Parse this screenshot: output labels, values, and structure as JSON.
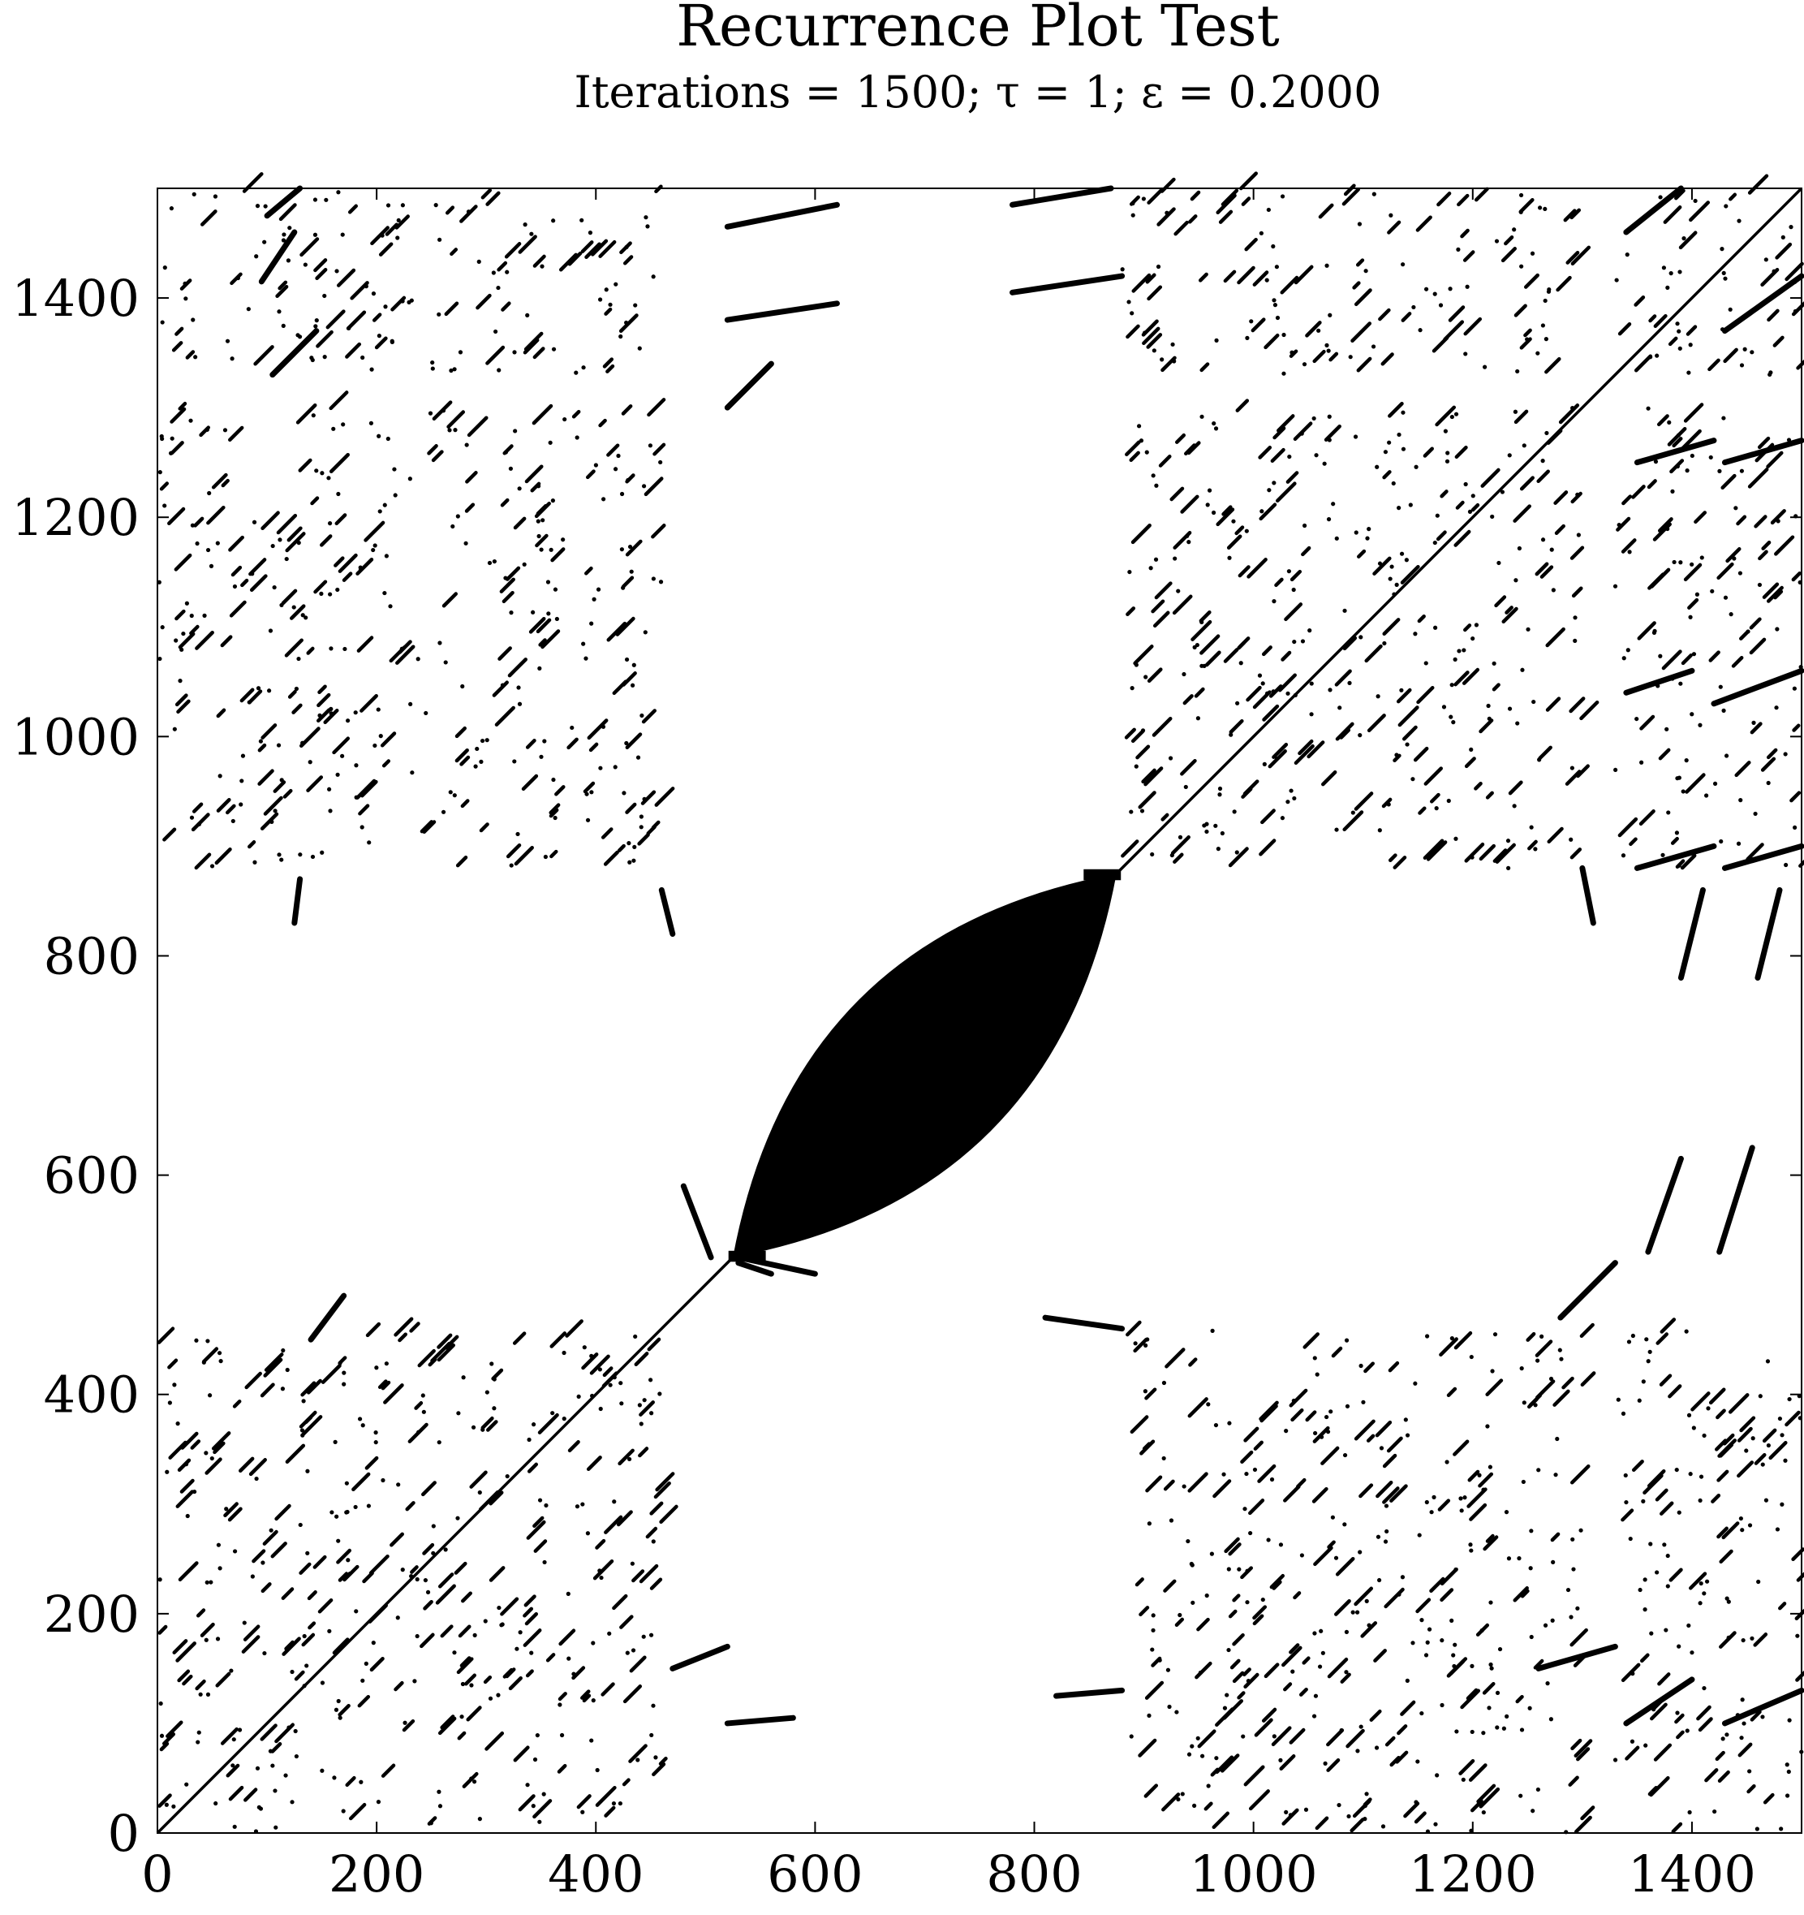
{
  "chart_data": {
    "type": "scatter",
    "title": "Recurrence Plot Test",
    "subtitle": "Iterations = 1500; τ = 1; ε = 0.2000",
    "xlabel": "",
    "ylabel": "",
    "xlim": [
      0,
      1500
    ],
    "ylim": [
      0,
      1500
    ],
    "grid": false,
    "legend": "none",
    "x_ticks": [
      0,
      200,
      400,
      600,
      800,
      1000,
      1200,
      1400
    ],
    "y_ticks": [
      0,
      200,
      400,
      600,
      800,
      1000,
      1200,
      1400
    ],
    "x_tick_labels": [
      "0",
      "200",
      "400",
      "600",
      "800",
      "1000",
      "1200",
      "1400"
    ],
    "y_tick_labels": [
      "0",
      "200",
      "400",
      "600",
      "800",
      "1000",
      "1200",
      "1400"
    ],
    "mark_color": "#000000",
    "features": {
      "main_diagonal": [
        [
          0,
          0
        ],
        [
          1500,
          1500
        ]
      ],
      "dense_core_band": [
        [
          525,
          525
        ],
        [
          875,
          875
        ]
      ],
      "block_ranges": [
        [
          0,
          460
        ],
        [
          880,
          1300
        ],
        [
          1330,
          1500
        ]
      ],
      "segments": [
        [
          [
            140,
            450
          ],
          [
            170,
            490
          ]
        ],
        [
          [
            105,
            1330
          ],
          [
            145,
            1370
          ]
        ],
        [
          [
            95,
            1415
          ],
          [
            125,
            1460
          ]
        ],
        [
          [
            100,
            1475
          ],
          [
            130,
            1500
          ]
        ],
        [
          [
            520,
            1300
          ],
          [
            560,
            1340
          ]
        ],
        [
          [
            520,
            1465
          ],
          [
            620,
            1485
          ]
        ],
        [
          [
            520,
            1380
          ],
          [
            620,
            1395
          ]
        ],
        [
          [
            780,
            1485
          ],
          [
            870,
            1500
          ]
        ],
        [
          [
            780,
            1405
          ],
          [
            880,
            1420
          ]
        ],
        [
          [
            470,
            150
          ],
          [
            520,
            170
          ]
        ],
        [
          [
            520,
            100
          ],
          [
            580,
            105
          ]
        ],
        [
          [
            820,
            125
          ],
          [
            880,
            130
          ]
        ],
        [
          [
            810,
            470
          ],
          [
            880,
            460
          ]
        ],
        [
          [
            1280,
            470
          ],
          [
            1330,
            520
          ]
        ],
        [
          [
            1260,
            150
          ],
          [
            1330,
            170
          ]
        ],
        [
          [
            1340,
            100
          ],
          [
            1400,
            140
          ]
        ],
        [
          [
            1430,
            100
          ],
          [
            1500,
            130
          ]
        ],
        [
          [
            1340,
            1460
          ],
          [
            1390,
            1500
          ]
        ],
        [
          [
            1430,
            1370
          ],
          [
            1500,
            1420
          ]
        ],
        [
          [
            1350,
            1250
          ],
          [
            1420,
            1270
          ]
        ],
        [
          [
            1430,
            1250
          ],
          [
            1500,
            1270
          ]
        ],
        [
          [
            1340,
            1040
          ],
          [
            1400,
            1060
          ]
        ],
        [
          [
            1420,
            1030
          ],
          [
            1500,
            1060
          ]
        ],
        [
          [
            1350,
            880
          ],
          [
            1420,
            900
          ]
        ],
        [
          [
            1430,
            880
          ],
          [
            1500,
            900
          ]
        ],
        [
          [
            1360,
            530
          ],
          [
            1390,
            615
          ]
        ],
        [
          [
            1425,
            530
          ],
          [
            1455,
            625
          ]
        ],
        [
          [
            1390,
            780
          ],
          [
            1410,
            860
          ]
        ],
        [
          [
            1460,
            780
          ],
          [
            1480,
            860
          ]
        ],
        [
          [
            1300,
            880
          ],
          [
            1310,
            830
          ]
        ],
        [
          [
            460,
            860
          ],
          [
            470,
            820
          ]
        ],
        [
          [
            125,
            830
          ],
          [
            130,
            870
          ]
        ],
        [
          [
            505,
            525
          ],
          [
            480,
            590
          ]
        ],
        [
          [
            530,
            520
          ],
          [
            560,
            510
          ]
        ],
        [
          [
            530,
            525
          ],
          [
            600,
            510
          ]
        ]
      ]
    }
  }
}
